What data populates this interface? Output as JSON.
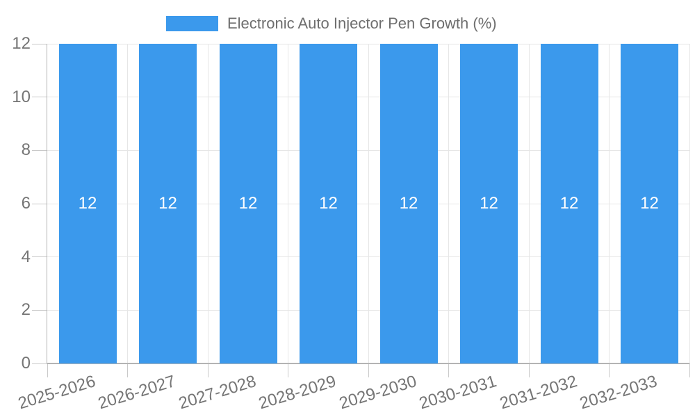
{
  "legend": {
    "label": "Electronic Auto Injector Pen Growth (%)"
  },
  "chart_data": {
    "type": "bar",
    "title": "Electronic Auto Injector Pen Growth (%)",
    "categories": [
      "2025-2026",
      "2026-2027",
      "2027-2028",
      "2028-2029",
      "2029-2030",
      "2030-2031",
      "2031-2032",
      "2032-2033"
    ],
    "series": [
      {
        "name": "Electronic Auto Injector Pen Growth (%)",
        "values": [
          12,
          12,
          12,
          12,
          12,
          12,
          12,
          12
        ]
      }
    ],
    "bar_value_labels": [
      "12",
      "12",
      "12",
      "12",
      "12",
      "12",
      "12",
      "12"
    ],
    "xlabel": "",
    "ylabel": "",
    "ylim": [
      0,
      12
    ],
    "yticks": [
      0,
      2,
      4,
      6,
      8,
      10,
      12
    ],
    "grid": true,
    "legend_position": "top-center",
    "colors": {
      "bar": "#3b99ec",
      "gridline": "#e6e6e6",
      "axis": "#b3b3b3",
      "tick": "#c9c9c9",
      "tick_text": "#757575",
      "bar_label_text": "#ffffff"
    }
  }
}
